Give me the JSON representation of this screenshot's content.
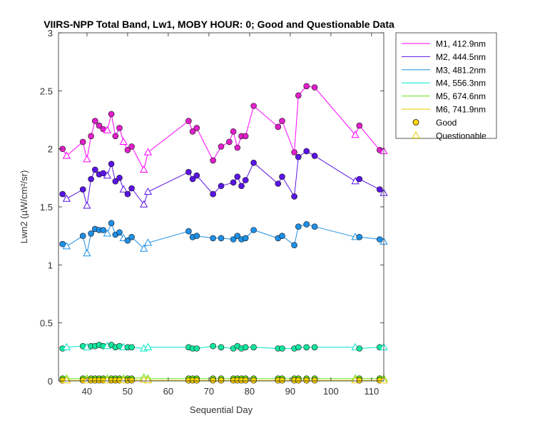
{
  "chart_data": {
    "type": "line",
    "title": "VIIRS-NPP Total Band, Lw1, MOBY HOUR: 0;  Good and Questionable Data",
    "xlabel": "Sequential Day",
    "ylabel": "Lwn2 (µW/cm²/sr)",
    "xlim": [
      33,
      113
    ],
    "ylim": [
      0,
      3
    ],
    "xticks": [
      40,
      50,
      60,
      70,
      80,
      90,
      100,
      110
    ],
    "yticks": [
      0,
      0.5,
      1,
      1.5,
      2,
      2.5,
      3
    ],
    "grid": false,
    "legend_position": "outside-top-right",
    "legend_markers": [
      {
        "label": "Good",
        "marker": "circle",
        "fill": "#ffd700",
        "stroke": "#000000"
      },
      {
        "label": "Questionable",
        "marker": "triangle",
        "fill": "#ffffff",
        "stroke": "#e6d200"
      }
    ],
    "series": [
      {
        "name": "M1, 412.9nm",
        "color": "#ff00ff",
        "marker_fill": "#e020c8",
        "x": [
          34,
          35,
          39,
          40,
          41,
          42,
          43,
          44,
          45,
          46,
          47,
          48,
          49,
          50,
          51,
          54,
          55,
          65,
          66,
          67,
          71,
          73,
          75,
          76,
          77,
          78,
          79,
          81,
          87,
          88,
          91,
          92,
          94,
          96,
          106,
          107,
          112,
          113
        ],
        "y": [
          2.0,
          1.94,
          2.06,
          1.91,
          2.11,
          2.24,
          2.2,
          2.17,
          2.16,
          2.3,
          2.11,
          2.18,
          2.06,
          1.99,
          2.02,
          1.82,
          1.97,
          2.24,
          2.15,
          2.18,
          1.9,
          2.02,
          2.06,
          2.15,
          2.01,
          2.11,
          2.11,
          2.37,
          2.19,
          2.24,
          1.97,
          2.46,
          2.54,
          2.53,
          2.12,
          2.2,
          1.99,
          1.98
        ],
        "quality": [
          "G",
          "Q",
          "G",
          "Q",
          "G",
          "G",
          "G",
          "G",
          "Q",
          "G",
          "G",
          "G",
          "Q",
          "G",
          "G",
          "Q",
          "Q",
          "G",
          "G",
          "G",
          "G",
          "G",
          "G",
          "G",
          "G",
          "G",
          "G",
          "G",
          "G",
          "G",
          "G",
          "G",
          "G",
          "G",
          "Q",
          "G",
          "G",
          "Q"
        ]
      },
      {
        "name": "M2, 444.5nm",
        "color": "#5a14e6",
        "marker_fill": "#5a14e6",
        "x": [
          34,
          35,
          39,
          40,
          41,
          42,
          43,
          44,
          45,
          46,
          47,
          48,
          49,
          50,
          51,
          54,
          55,
          65,
          66,
          67,
          71,
          73,
          76,
          77,
          78,
          79,
          81,
          87,
          88,
          91,
          92,
          94,
          96,
          106,
          107,
          112,
          113
        ],
        "y": [
          1.61,
          1.57,
          1.65,
          1.51,
          1.74,
          1.82,
          1.78,
          1.79,
          1.77,
          1.87,
          1.72,
          1.75,
          1.65,
          1.61,
          1.66,
          1.52,
          1.63,
          1.8,
          1.74,
          1.77,
          1.61,
          1.68,
          1.71,
          1.76,
          1.68,
          1.73,
          1.88,
          1.7,
          1.76,
          1.59,
          1.93,
          1.98,
          1.94,
          1.72,
          1.74,
          1.65,
          1.62
        ],
        "quality": [
          "G",
          "Q",
          "G",
          "Q",
          "G",
          "G",
          "G",
          "G",
          "Q",
          "G",
          "G",
          "G",
          "Q",
          "G",
          "G",
          "Q",
          "Q",
          "G",
          "G",
          "G",
          "G",
          "G",
          "G",
          "G",
          "G",
          "G",
          "G",
          "G",
          "G",
          "G",
          "G",
          "G",
          "G",
          "Q",
          "G",
          "G",
          "Q"
        ]
      },
      {
        "name": "M3, 481.2nm",
        "color": "#1e90e6",
        "marker_fill": "#1e90e6",
        "x": [
          34,
          35,
          39,
          40,
          41,
          42,
          43,
          44,
          45,
          46,
          47,
          48,
          49,
          50,
          51,
          54,
          55,
          65,
          66,
          67,
          71,
          73,
          76,
          77,
          78,
          79,
          81,
          87,
          88,
          91,
          92,
          94,
          96,
          106,
          107,
          112,
          113
        ],
        "y": [
          1.18,
          1.16,
          1.25,
          1.1,
          1.27,
          1.31,
          1.3,
          1.3,
          1.27,
          1.36,
          1.26,
          1.28,
          1.23,
          1.21,
          1.24,
          1.14,
          1.19,
          1.29,
          1.24,
          1.25,
          1.23,
          1.23,
          1.22,
          1.25,
          1.22,
          1.23,
          1.3,
          1.23,
          1.25,
          1.17,
          1.33,
          1.35,
          1.33,
          1.24,
          1.24,
          1.22,
          1.2
        ],
        "quality": [
          "G",
          "Q",
          "G",
          "Q",
          "G",
          "G",
          "G",
          "G",
          "Q",
          "G",
          "G",
          "G",
          "Q",
          "G",
          "G",
          "Q",
          "Q",
          "G",
          "G",
          "G",
          "G",
          "G",
          "G",
          "G",
          "G",
          "G",
          "G",
          "G",
          "G",
          "G",
          "G",
          "G",
          "G",
          "Q",
          "G",
          "G",
          "Q"
        ]
      },
      {
        "name": "M4, 556.3nm",
        "color": "#00e6c8",
        "marker_fill": "#14e6a0",
        "x": [
          34,
          35,
          39,
          40,
          41,
          42,
          43,
          44,
          45,
          46,
          47,
          48,
          49,
          50,
          51,
          54,
          55,
          65,
          66,
          67,
          71,
          73,
          76,
          77,
          78,
          79,
          81,
          87,
          88,
          91,
          92,
          94,
          96,
          106,
          107,
          112,
          113
        ],
        "y": [
          0.28,
          0.29,
          0.3,
          0.29,
          0.3,
          0.3,
          0.31,
          0.3,
          0.3,
          0.31,
          0.29,
          0.3,
          0.29,
          0.29,
          0.29,
          0.28,
          0.29,
          0.29,
          0.28,
          0.28,
          0.3,
          0.29,
          0.28,
          0.3,
          0.28,
          0.29,
          0.29,
          0.28,
          0.28,
          0.28,
          0.29,
          0.29,
          0.29,
          0.29,
          0.28,
          0.29,
          0.29
        ],
        "quality": [
          "G",
          "Q",
          "G",
          "Q",
          "G",
          "G",
          "G",
          "G",
          "Q",
          "G",
          "G",
          "G",
          "Q",
          "G",
          "G",
          "Q",
          "Q",
          "G",
          "G",
          "G",
          "G",
          "G",
          "G",
          "G",
          "G",
          "G",
          "G",
          "G",
          "G",
          "G",
          "G",
          "G",
          "G",
          "Q",
          "G",
          "G",
          "Q"
        ]
      },
      {
        "name": "M5, 674.6nm",
        "color": "#64e614",
        "marker_fill": "#64e614",
        "x": [
          34,
          35,
          39,
          40,
          41,
          42,
          43,
          44,
          45,
          46,
          47,
          48,
          49,
          50,
          51,
          54,
          55,
          65,
          66,
          67,
          71,
          73,
          76,
          77,
          78,
          79,
          81,
          87,
          88,
          91,
          92,
          94,
          96,
          106,
          107,
          112,
          113
        ],
        "y": [
          0.02,
          0.02,
          0.02,
          0.02,
          0.02,
          0.02,
          0.02,
          0.02,
          0.02,
          0.02,
          0.02,
          0.02,
          0.02,
          0.02,
          0.02,
          0.03,
          0.02,
          0.02,
          0.02,
          0.02,
          0.02,
          0.02,
          0.02,
          0.02,
          0.02,
          0.02,
          0.02,
          0.02,
          0.02,
          0.02,
          0.02,
          0.02,
          0.02,
          0.02,
          0.02,
          0.02,
          0.02
        ],
        "quality": [
          "G",
          "Q",
          "G",
          "Q",
          "G",
          "G",
          "G",
          "G",
          "Q",
          "G",
          "G",
          "G",
          "Q",
          "G",
          "G",
          "Q",
          "Q",
          "G",
          "G",
          "G",
          "G",
          "G",
          "G",
          "G",
          "G",
          "G",
          "G",
          "G",
          "G",
          "G",
          "G",
          "G",
          "G",
          "Q",
          "G",
          "G",
          "Q"
        ]
      },
      {
        "name": "M6, 741.9nm",
        "color": "#e6c800",
        "marker_fill": "#ffd700",
        "x": [
          34,
          35,
          39,
          40,
          41,
          42,
          43,
          44,
          45,
          46,
          47,
          48,
          49,
          50,
          51,
          54,
          55,
          65,
          66,
          67,
          71,
          73,
          76,
          77,
          78,
          79,
          81,
          87,
          88,
          91,
          92,
          94,
          96,
          106,
          107,
          112,
          113
        ],
        "y": [
          0.005,
          0.005,
          0.005,
          0.005,
          0.005,
          0.005,
          0.005,
          0.005,
          0.005,
          0.005,
          0.005,
          0.005,
          0.005,
          0.005,
          0.005,
          0.01,
          0.005,
          0.005,
          0.005,
          0.005,
          0.005,
          0.005,
          0.005,
          0.005,
          0.005,
          0.005,
          0.005,
          0.005,
          0.005,
          0.005,
          0.005,
          0.005,
          0.005,
          0.005,
          0.005,
          0.005,
          0.005
        ],
        "quality": [
          "G",
          "Q",
          "G",
          "Q",
          "G",
          "G",
          "G",
          "G",
          "Q",
          "G",
          "G",
          "G",
          "Q",
          "G",
          "G",
          "Q",
          "Q",
          "G",
          "G",
          "G",
          "G",
          "G",
          "G",
          "G",
          "G",
          "G",
          "G",
          "G",
          "G",
          "G",
          "G",
          "G",
          "G",
          "Q",
          "G",
          "G",
          "Q"
        ]
      }
    ]
  }
}
